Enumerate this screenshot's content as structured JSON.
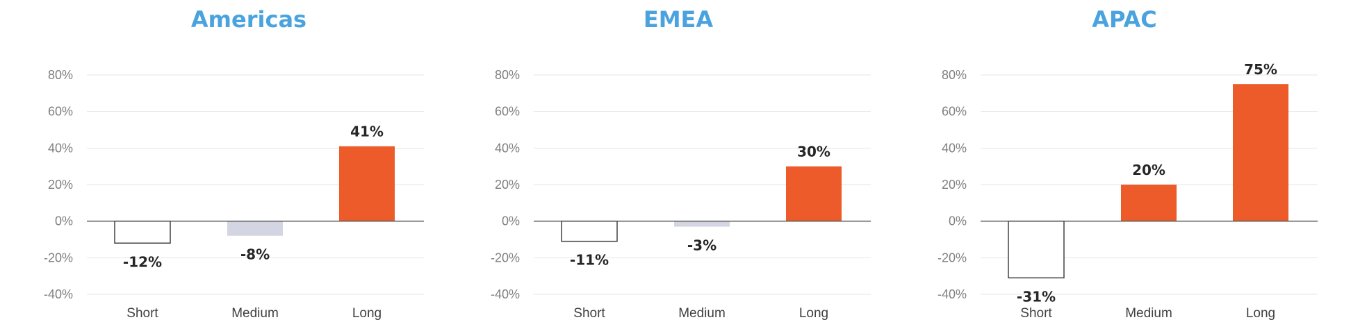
{
  "colors": {
    "title": "#4aa3df",
    "positive": "#ec5b29",
    "medium_negative": "#d3d5e3",
    "short_fill": "#ffffff",
    "short_stroke": "#404040",
    "gridline": "#e6e6e6",
    "axis": "#595959"
  },
  "chart_data": [
    {
      "type": "bar",
      "title": "Americas",
      "categories": [
        "Short",
        "Medium",
        "Long"
      ],
      "values": [
        -12,
        -8,
        41
      ],
      "data_labels": [
        "-12%",
        "-8%",
        "41%"
      ],
      "ylim": [
        -40,
        80
      ],
      "yticks": [
        "80%",
        "60%",
        "40%",
        "20%",
        "0%",
        "-20%",
        "-40%"
      ],
      "grid": true,
      "legend": "none"
    },
    {
      "type": "bar",
      "title": "EMEA",
      "categories": [
        "Short",
        "Medium",
        "Long"
      ],
      "values": [
        -11,
        -3,
        30
      ],
      "data_labels": [
        "-11%",
        "-3%",
        "30%"
      ],
      "ylim": [
        -40,
        80
      ],
      "yticks": [
        "80%",
        "60%",
        "40%",
        "20%",
        "0%",
        "-20%",
        "-40%"
      ],
      "grid": true,
      "legend": "none"
    },
    {
      "type": "bar",
      "title": "APAC",
      "categories": [
        "Short",
        "Medium",
        "Long"
      ],
      "values": [
        -31,
        20,
        75
      ],
      "data_labels": [
        "-31%",
        "20%",
        "75%"
      ],
      "ylim": [
        -40,
        80
      ],
      "yticks": [
        "80%",
        "60%",
        "40%",
        "20%",
        "0%",
        "-20%",
        "-40%"
      ],
      "grid": true,
      "legend": "none"
    }
  ]
}
